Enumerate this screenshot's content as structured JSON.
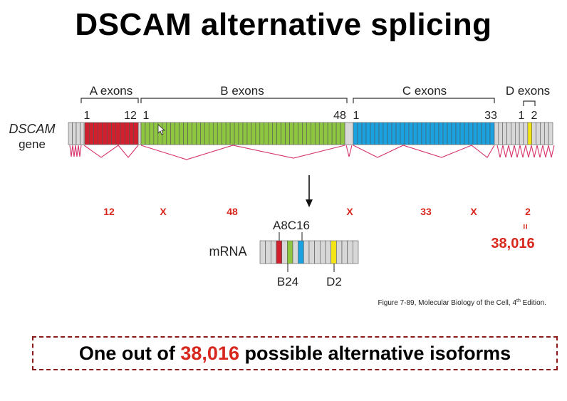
{
  "title": "DSCAM alternative splicing",
  "gene": {
    "name": "DSCAM",
    "sub": "gene"
  },
  "exon_groups": [
    {
      "label": "A exons",
      "first": "1",
      "last": "12",
      "count": 12,
      "color": "#d0202e"
    },
    {
      "label": "B exons",
      "first": "1",
      "last": "48",
      "count": 48,
      "color": "#8fc641"
    },
    {
      "label": "C exons",
      "first": "1",
      "last": "33",
      "count": 33,
      "color": "#1aa1e0"
    },
    {
      "label": "D exons",
      "first": "1",
      "last": "2",
      "count": 2,
      "color": "#f4e516"
    }
  ],
  "calc": {
    "a": "12",
    "x1": "X",
    "b": "48",
    "x2": "X",
    "c": "33",
    "x3": "X",
    "d": "2",
    "eq": "=",
    "total": "38,016"
  },
  "mrna": {
    "label": "mRNA",
    "top_label": "A8C16",
    "b_label": "B24",
    "d_label": "D2"
  },
  "citation": {
    "text": "Figure 7-89, Molecular Biology of the Cell, 4",
    "sup": "th",
    "tail": " Edition."
  },
  "footer": {
    "prefix": "One out of ",
    "highlight": "38,016",
    "suffix": " possible alternative isoforms"
  },
  "colors": {
    "intron": "#d8d8d8",
    "splice_line": "#d6336c",
    "number_red": "#d8271c",
    "outline": "#555555"
  }
}
